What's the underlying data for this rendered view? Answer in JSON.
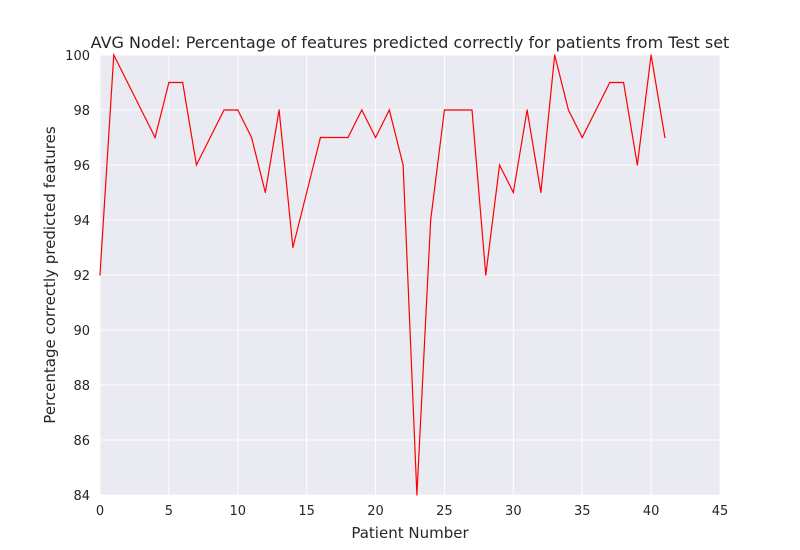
{
  "chart_data": {
    "type": "line",
    "title": "AVG Nodel: Percentage of features predicted correctly for patients from Test set",
    "xlabel": "Patient Number",
    "ylabel": "Percentage correctly predicted features",
    "xlim": [
      0,
      45
    ],
    "ylim": [
      84,
      100
    ],
    "xticks": [
      0,
      5,
      10,
      15,
      20,
      25,
      30,
      35,
      40,
      45
    ],
    "yticks": [
      84,
      86,
      88,
      90,
      92,
      94,
      96,
      98,
      100
    ],
    "grid": true,
    "colors": {
      "line": "#ff0000",
      "plot_bg": "#eaeaf2",
      "grid": "#ffffff"
    },
    "series": [
      {
        "x": [
          0,
          1,
          2,
          3,
          4,
          5,
          6,
          7,
          8,
          9,
          10,
          11,
          12,
          13,
          14,
          15,
          16,
          17,
          18,
          19,
          20,
          21,
          22,
          23,
          24,
          25,
          26,
          27,
          28,
          29,
          30,
          31,
          32,
          33,
          34,
          35,
          36,
          37,
          38,
          39,
          40,
          41
        ],
        "values": [
          92,
          100,
          99,
          98,
          97,
          99,
          99,
          96,
          97,
          98,
          98,
          97,
          95,
          98,
          93,
          95,
          97,
          97,
          97,
          98,
          97,
          98,
          96,
          84,
          94,
          98,
          98,
          98,
          92,
          96,
          95,
          98,
          95,
          100,
          98,
          97,
          98,
          99,
          99,
          96,
          100,
          97
        ]
      }
    ]
  }
}
